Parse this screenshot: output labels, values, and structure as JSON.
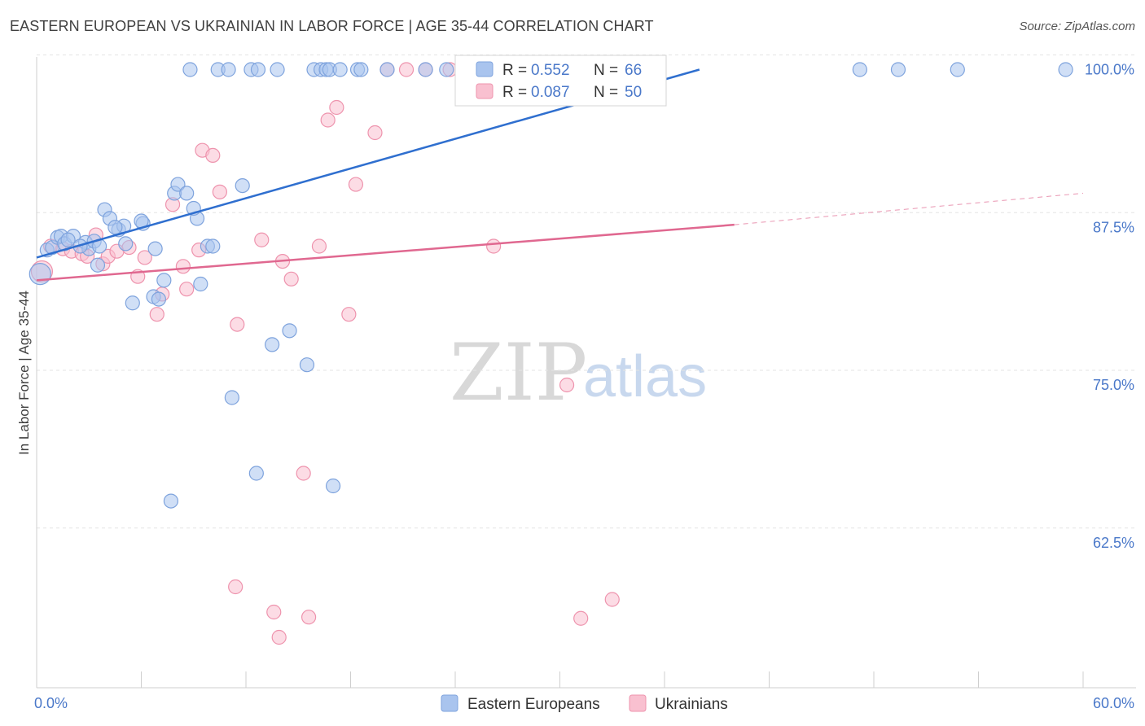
{
  "title": "EASTERN EUROPEAN VS UKRAINIAN IN LABOR FORCE | AGE 35-44 CORRELATION CHART",
  "source": "Source: ZipAtlas.com",
  "watermark": {
    "zip": "ZIP",
    "atlas": "atlas"
  },
  "legend_top": {
    "r_label": "R =",
    "n_label": "N =",
    "rows": [
      {
        "r": "0.552",
        "n": "66",
        "color": "#a9c4ee",
        "stroke": "#7ea3dd"
      },
      {
        "r": "0.087",
        "n": "50",
        "color": "#f9c0d0",
        "stroke": "#ee93ad"
      }
    ]
  },
  "legend_bottom": [
    {
      "label": "Eastern Europeans",
      "color": "#a9c4ee",
      "stroke": "#7ea3dd"
    },
    {
      "label": "Ukrainians",
      "color": "#f9c0d0",
      "stroke": "#ee93ad"
    }
  ],
  "chart_data": {
    "type": "scatter",
    "title": "EASTERN EUROPEAN VS UKRAINIAN IN LABOR FORCE | AGE 35-44 CORRELATION CHART",
    "xlabel": "",
    "ylabel": "In Labor Force | Age 35-44",
    "xlim": [
      0,
      60
    ],
    "ylim": [
      51,
      101
    ],
    "x_tick_labels": [
      {
        "value": 0,
        "label": "0.0%"
      },
      {
        "value": 60,
        "label": "60.0%"
      }
    ],
    "y_tick_labels": [
      {
        "value": 100,
        "label": "100.0%"
      },
      {
        "value": 87.5,
        "label": "87.5%"
      },
      {
        "value": 75,
        "label": "75.0%"
      },
      {
        "value": 62.5,
        "label": "62.5%"
      }
    ],
    "grid": true,
    "series": [
      {
        "name": "Eastern Europeans",
        "color": "#a9c4ee",
        "stroke": "#7ea3dd",
        "line_color": "#2f6fcf",
        "r": 0.552,
        "n": 66,
        "trend": {
          "x": [
            0,
            38
          ],
          "y": [
            85.1,
            100
          ]
        },
        "points": [
          [
            0.2,
            83.8
          ],
          [
            0.6,
            85.7
          ],
          [
            0.9,
            85.9
          ],
          [
            1.2,
            86.7
          ],
          [
            1.4,
            86.8
          ],
          [
            1.6,
            86.2
          ],
          [
            2.1,
            86.8
          ],
          [
            2.8,
            86.3
          ],
          [
            3.0,
            85.8
          ],
          [
            3.3,
            86.4
          ],
          [
            3.9,
            88.9
          ],
          [
            3.5,
            84.5
          ],
          [
            4.2,
            88.2
          ],
          [
            4.7,
            87.3
          ],
          [
            5.0,
            87.6
          ],
          [
            5.1,
            86.2
          ],
          [
            6.1,
            87.8
          ],
          [
            6.0,
            88.0
          ],
          [
            6.8,
            85.8
          ],
          [
            5.5,
            81.5
          ],
          [
            6.7,
            82.0
          ],
          [
            7.3,
            83.3
          ],
          [
            7.7,
            65.8
          ],
          [
            7.9,
            90.2
          ],
          [
            8.1,
            90.9
          ],
          [
            8.6,
            90.2
          ],
          [
            9.2,
            88.2
          ],
          [
            9.4,
            83.0
          ],
          [
            9.8,
            86.0
          ],
          [
            10.1,
            86.0
          ],
          [
            11.2,
            74.0
          ],
          [
            11.8,
            90.8
          ],
          [
            12.6,
            68.0
          ],
          [
            13.5,
            78.2
          ],
          [
            14.5,
            79.3
          ],
          [
            15.5,
            76.6
          ],
          [
            17.0,
            67.0
          ],
          [
            8.8,
            100
          ],
          [
            10.4,
            100
          ],
          [
            11.0,
            100
          ],
          [
            12.3,
            100
          ],
          [
            12.7,
            100
          ],
          [
            13.8,
            100
          ],
          [
            15.9,
            100
          ],
          [
            16.3,
            100
          ],
          [
            16.6,
            100
          ],
          [
            16.8,
            100
          ],
          [
            17.4,
            100
          ],
          [
            18.4,
            100
          ],
          [
            18.6,
            100
          ],
          [
            20.1,
            100
          ],
          [
            22.3,
            100
          ],
          [
            23.5,
            100
          ],
          [
            25.8,
            100
          ],
          [
            27.1,
            100
          ],
          [
            35.3,
            100
          ],
          [
            47.2,
            100
          ],
          [
            49.4,
            100
          ],
          [
            52.8,
            100
          ],
          [
            59.0,
            100
          ],
          [
            1.8,
            86.5
          ],
          [
            2.5,
            86.0
          ],
          [
            4.5,
            87.5
          ],
          [
            7.0,
            81.8
          ],
          [
            9.0,
            89.0
          ],
          [
            3.6,
            86.0
          ]
        ]
      },
      {
        "name": "Ukrainians",
        "color": "#f9c0d0",
        "stroke": "#ee93ad",
        "line_color": "#e06890",
        "r": 0.087,
        "n": 50,
        "trend": {
          "x": [
            0,
            40
          ],
          "y": [
            83.3,
            87.7
          ],
          "dash_to": {
            "x": 60,
            "y": 90.2
          }
        },
        "points": [
          [
            0.3,
            84.0
          ],
          [
            0.8,
            86.0
          ],
          [
            1.5,
            85.8
          ],
          [
            2.0,
            85.6
          ],
          [
            2.6,
            85.4
          ],
          [
            2.9,
            85.2
          ],
          [
            3.4,
            86.9
          ],
          [
            3.8,
            84.6
          ],
          [
            4.1,
            85.2
          ],
          [
            4.6,
            85.6
          ],
          [
            5.3,
            85.9
          ],
          [
            5.8,
            83.6
          ],
          [
            6.2,
            85.1
          ],
          [
            6.9,
            80.6
          ],
          [
            7.2,
            82.2
          ],
          [
            7.8,
            89.3
          ],
          [
            8.4,
            84.4
          ],
          [
            8.6,
            82.6
          ],
          [
            9.3,
            85.7
          ],
          [
            9.5,
            93.6
          ],
          [
            10.1,
            93.2
          ],
          [
            10.5,
            90.3
          ],
          [
            11.4,
            59.0
          ],
          [
            11.5,
            79.8
          ],
          [
            12.9,
            86.5
          ],
          [
            13.6,
            57.0
          ],
          [
            13.9,
            55.0
          ],
          [
            14.1,
            84.8
          ],
          [
            14.6,
            83.4
          ],
          [
            15.3,
            68.0
          ],
          [
            15.6,
            56.6
          ],
          [
            16.2,
            86.0
          ],
          [
            16.7,
            96.0
          ],
          [
            17.2,
            97.0
          ],
          [
            17.9,
            80.6
          ],
          [
            18.3,
            90.9
          ],
          [
            19.4,
            95.0
          ],
          [
            20.1,
            100
          ],
          [
            21.2,
            100
          ],
          [
            22.3,
            100
          ],
          [
            23.7,
            100
          ],
          [
            26.2,
            86.0
          ],
          [
            27.0,
            100
          ],
          [
            28.3,
            100
          ],
          [
            30.0,
            100
          ],
          [
            30.4,
            75.0
          ],
          [
            31.2,
            56.5
          ],
          [
            32.1,
            100
          ],
          [
            33.0,
            58.0
          ],
          [
            35.6,
            100
          ]
        ]
      }
    ]
  }
}
